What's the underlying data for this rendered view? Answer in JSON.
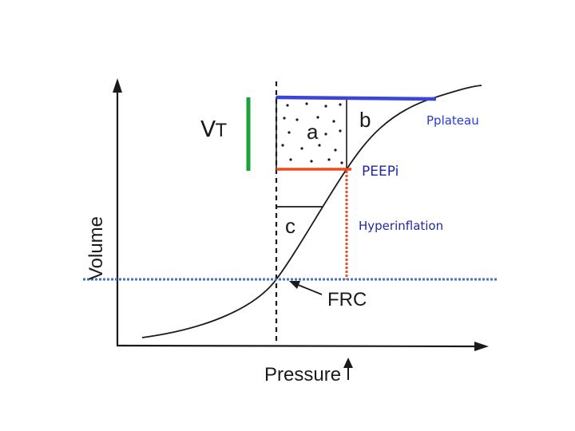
{
  "labels": {
    "vt_main": "V",
    "vt_sub": "T",
    "region_a": "a",
    "region_b": "b",
    "region_c": "c",
    "pplateau": "Pplateau",
    "peepi": "PEEPi",
    "hyperinflation": "Hyperinflation",
    "frc": "FRC",
    "y_axis": "Volume",
    "x_axis": "Pressure"
  },
  "colors": {
    "pplateau_line": "#3a46d8",
    "peepi_line": "#ef4a1c",
    "hyperinflation_line": "#e5502a",
    "vt_bar": "#1aa33a",
    "frc_line": "#4a6fc0",
    "pplateau_text": "#2b3bd0",
    "peepi_text": "#1f2aa0",
    "hyperinflation_text": "#1f2aa0",
    "ink": "#1a1a1a"
  }
}
